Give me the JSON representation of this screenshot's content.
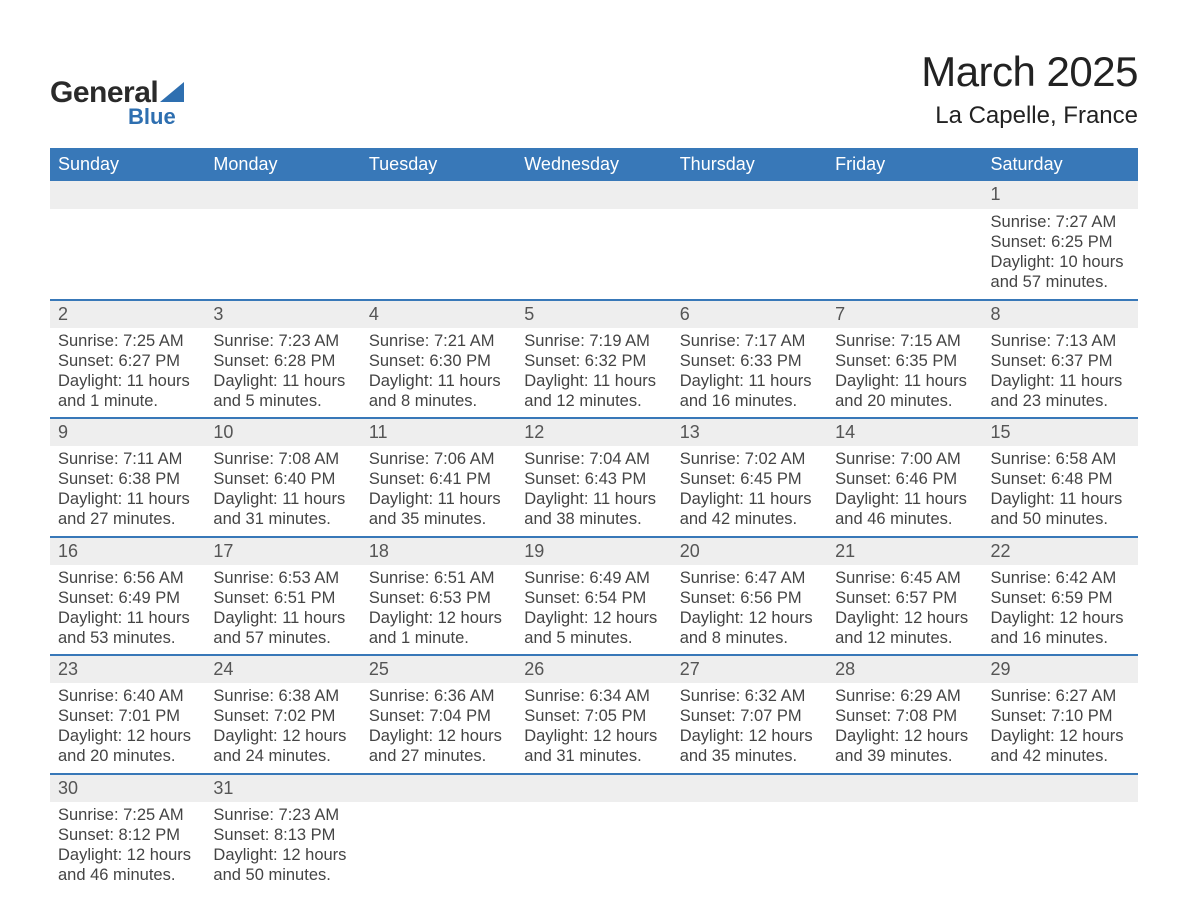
{
  "brand": {
    "word1": "General",
    "word2": "Blue"
  },
  "header": {
    "month_title": "March 2025",
    "location": "La Capelle, France"
  },
  "colors": {
    "header_bg": "#3878b8",
    "header_text": "#ffffff",
    "daynum_bg": "#eeeeee",
    "row_border": "#3878b8",
    "body_text": "#444444",
    "page_bg": "#ffffff",
    "logo_blue": "#2e6fb0"
  },
  "typography": {
    "month_title_fontsize": 42,
    "location_fontsize": 24,
    "weekday_fontsize": 18,
    "daynum_fontsize": 18,
    "cell_fontsize": 16.5
  },
  "weekdays": [
    "Sunday",
    "Monday",
    "Tuesday",
    "Wednesday",
    "Thursday",
    "Friday",
    "Saturday"
  ],
  "labels": {
    "sunrise": "Sunrise: ",
    "sunset": "Sunset: ",
    "daylight": "Daylight: "
  },
  "weeks": [
    [
      null,
      null,
      null,
      null,
      null,
      null,
      {
        "day": "1",
        "sunrise": "7:27 AM",
        "sunset": "6:25 PM",
        "daylight": "10 hours and 57 minutes."
      }
    ],
    [
      {
        "day": "2",
        "sunrise": "7:25 AM",
        "sunset": "6:27 PM",
        "daylight": "11 hours and 1 minute."
      },
      {
        "day": "3",
        "sunrise": "7:23 AM",
        "sunset": "6:28 PM",
        "daylight": "11 hours and 5 minutes."
      },
      {
        "day": "4",
        "sunrise": "7:21 AM",
        "sunset": "6:30 PM",
        "daylight": "11 hours and 8 minutes."
      },
      {
        "day": "5",
        "sunrise": "7:19 AM",
        "sunset": "6:32 PM",
        "daylight": "11 hours and 12 minutes."
      },
      {
        "day": "6",
        "sunrise": "7:17 AM",
        "sunset": "6:33 PM",
        "daylight": "11 hours and 16 minutes."
      },
      {
        "day": "7",
        "sunrise": "7:15 AM",
        "sunset": "6:35 PM",
        "daylight": "11 hours and 20 minutes."
      },
      {
        "day": "8",
        "sunrise": "7:13 AM",
        "sunset": "6:37 PM",
        "daylight": "11 hours and 23 minutes."
      }
    ],
    [
      {
        "day": "9",
        "sunrise": "7:11 AM",
        "sunset": "6:38 PM",
        "daylight": "11 hours and 27 minutes."
      },
      {
        "day": "10",
        "sunrise": "7:08 AM",
        "sunset": "6:40 PM",
        "daylight": "11 hours and 31 minutes."
      },
      {
        "day": "11",
        "sunrise": "7:06 AM",
        "sunset": "6:41 PM",
        "daylight": "11 hours and 35 minutes."
      },
      {
        "day": "12",
        "sunrise": "7:04 AM",
        "sunset": "6:43 PM",
        "daylight": "11 hours and 38 minutes."
      },
      {
        "day": "13",
        "sunrise": "7:02 AM",
        "sunset": "6:45 PM",
        "daylight": "11 hours and 42 minutes."
      },
      {
        "day": "14",
        "sunrise": "7:00 AM",
        "sunset": "6:46 PM",
        "daylight": "11 hours and 46 minutes."
      },
      {
        "day": "15",
        "sunrise": "6:58 AM",
        "sunset": "6:48 PM",
        "daylight": "11 hours and 50 minutes."
      }
    ],
    [
      {
        "day": "16",
        "sunrise": "6:56 AM",
        "sunset": "6:49 PM",
        "daylight": "11 hours and 53 minutes."
      },
      {
        "day": "17",
        "sunrise": "6:53 AM",
        "sunset": "6:51 PM",
        "daylight": "11 hours and 57 minutes."
      },
      {
        "day": "18",
        "sunrise": "6:51 AM",
        "sunset": "6:53 PM",
        "daylight": "12 hours and 1 minute."
      },
      {
        "day": "19",
        "sunrise": "6:49 AM",
        "sunset": "6:54 PM",
        "daylight": "12 hours and 5 minutes."
      },
      {
        "day": "20",
        "sunrise": "6:47 AM",
        "sunset": "6:56 PM",
        "daylight": "12 hours and 8 minutes."
      },
      {
        "day": "21",
        "sunrise": "6:45 AM",
        "sunset": "6:57 PM",
        "daylight": "12 hours and 12 minutes."
      },
      {
        "day": "22",
        "sunrise": "6:42 AM",
        "sunset": "6:59 PM",
        "daylight": "12 hours and 16 minutes."
      }
    ],
    [
      {
        "day": "23",
        "sunrise": "6:40 AM",
        "sunset": "7:01 PM",
        "daylight": "12 hours and 20 minutes."
      },
      {
        "day": "24",
        "sunrise": "6:38 AM",
        "sunset": "7:02 PM",
        "daylight": "12 hours and 24 minutes."
      },
      {
        "day": "25",
        "sunrise": "6:36 AM",
        "sunset": "7:04 PM",
        "daylight": "12 hours and 27 minutes."
      },
      {
        "day": "26",
        "sunrise": "6:34 AM",
        "sunset": "7:05 PM",
        "daylight": "12 hours and 31 minutes."
      },
      {
        "day": "27",
        "sunrise": "6:32 AM",
        "sunset": "7:07 PM",
        "daylight": "12 hours and 35 minutes."
      },
      {
        "day": "28",
        "sunrise": "6:29 AM",
        "sunset": "7:08 PM",
        "daylight": "12 hours and 39 minutes."
      },
      {
        "day": "29",
        "sunrise": "6:27 AM",
        "sunset": "7:10 PM",
        "daylight": "12 hours and 42 minutes."
      }
    ],
    [
      {
        "day": "30",
        "sunrise": "7:25 AM",
        "sunset": "8:12 PM",
        "daylight": "12 hours and 46 minutes."
      },
      {
        "day": "31",
        "sunrise": "7:23 AM",
        "sunset": "8:13 PM",
        "daylight": "12 hours and 50 minutes."
      },
      null,
      null,
      null,
      null,
      null
    ]
  ]
}
